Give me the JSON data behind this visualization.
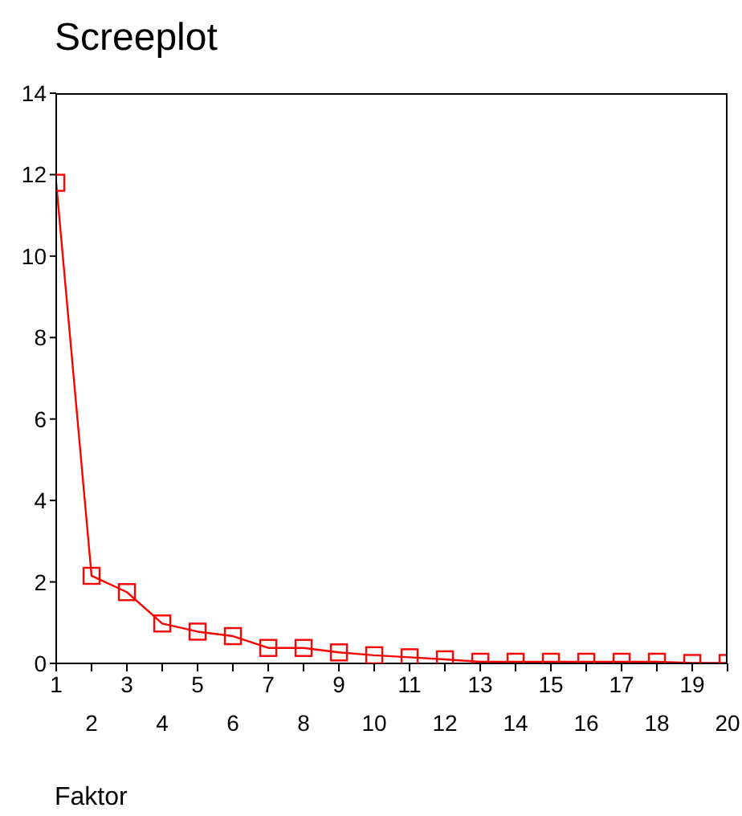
{
  "chart_data": {
    "type": "line",
    "title": "Screeplot",
    "xlabel": "Faktor",
    "categories": [
      "1",
      "2",
      "3",
      "4",
      "5",
      "6",
      "7",
      "8",
      "9",
      "10",
      "11",
      "12",
      "13",
      "14",
      "15",
      "16",
      "17",
      "18",
      "19",
      "20"
    ],
    "series": [
      {
        "color": "#ff0000",
        "values": [
          11.8,
          2.15,
          1.75,
          0.98,
          0.78,
          0.67,
          0.38,
          0.38,
          0.27,
          0.2,
          0.15,
          0.1,
          0.04,
          0.04,
          0.04,
          0.04,
          0.04,
          0.04,
          0.01,
          0.01
        ]
      }
    ],
    "ylim": [
      0,
      14
    ],
    "yticks": [
      0,
      2,
      4,
      6,
      8,
      10,
      12,
      14
    ],
    "marker": "square",
    "line_style": "solid"
  }
}
